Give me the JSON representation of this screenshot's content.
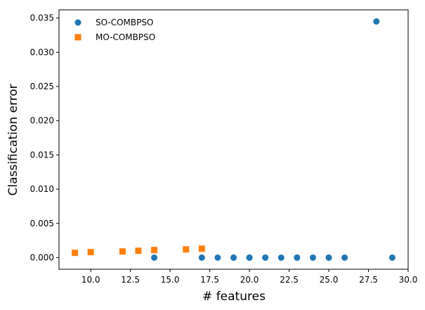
{
  "chart_data": {
    "type": "scatter",
    "xlabel": "# features",
    "ylabel": "Classification error",
    "xlim": [
      8.0,
      30.0
    ],
    "ylim": [
      -0.0017,
      0.0362
    ],
    "xticks": [
      10.0,
      12.5,
      15.0,
      17.5,
      20.0,
      22.5,
      25.0,
      27.5,
      30.0
    ],
    "xtick_labels": [
      "10.0",
      "12.5",
      "15.0",
      "17.5",
      "20.0",
      "22.5",
      "25.0",
      "27.5",
      "30.0"
    ],
    "yticks": [
      0.0,
      0.005,
      0.01,
      0.015,
      0.02,
      0.025,
      0.03,
      0.035
    ],
    "ytick_labels": [
      "0.000",
      "0.005",
      "0.010",
      "0.015",
      "0.020",
      "0.025",
      "0.030",
      "0.035"
    ],
    "grid": false,
    "legend_position": "top-left",
    "series": [
      {
        "name": "SO-COMBPSO",
        "marker": "circle",
        "color": "#1f77b4",
        "points": [
          [
            14,
            0.0
          ],
          [
            17,
            0.0
          ],
          [
            18,
            0.0
          ],
          [
            19,
            0.0
          ],
          [
            19,
            0.0
          ],
          [
            20,
            0.0
          ],
          [
            20,
            0.0
          ],
          [
            21,
            0.0
          ],
          [
            21,
            0.0
          ],
          [
            22,
            0.0
          ],
          [
            23,
            0.0
          ],
          [
            23,
            0.0
          ],
          [
            24,
            0.0
          ],
          [
            25,
            0.0
          ],
          [
            25,
            0.0
          ],
          [
            26,
            0.0
          ],
          [
            28,
            0.0345
          ],
          [
            29,
            0.0
          ]
        ]
      },
      {
        "name": "MO-COMBPSO",
        "marker": "square",
        "color": "#ff7f0e",
        "points": [
          [
            9,
            0.0007
          ],
          [
            10,
            0.0008
          ],
          [
            12,
            0.0009
          ],
          [
            13,
            0.001
          ],
          [
            14,
            0.0011
          ],
          [
            16,
            0.0012
          ],
          [
            17,
            0.0013
          ]
        ]
      }
    ]
  }
}
